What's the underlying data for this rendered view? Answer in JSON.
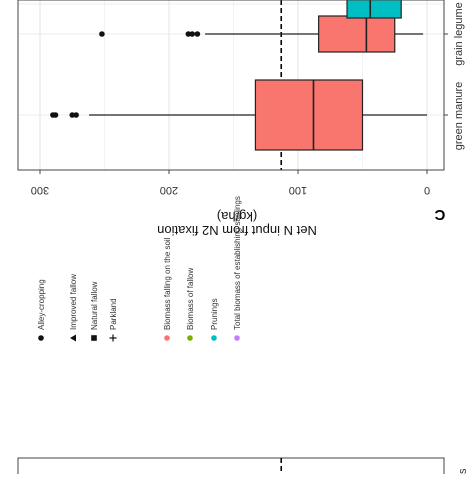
{
  "chart_data": {
    "type": "boxplot",
    "panel_label": "C",
    "ylabel": "Net N input from N2 fixation\n(kg/ha)",
    "xlabel": "",
    "ylim": [
      0,
      320
    ],
    "y_ticks": [
      0,
      100,
      200,
      300
    ],
    "orientation": "rotated 90 degrees clockwise",
    "reference_line": {
      "value": 113,
      "style": "dashed"
    },
    "categories": [
      "green manure",
      "grain legume",
      ""
    ],
    "boxes": [
      {
        "category": "green manure",
        "group": "Biomass falling on the soil",
        "q1": 50,
        "median": 88,
        "q3": 133,
        "whisker_low": 0,
        "whisker_high": 262,
        "outliers": [
          288,
          290,
          272,
          275
        ]
      },
      {
        "category": "grain legume",
        "group": "Biomass falling on the soil",
        "q1": 25,
        "median": 47,
        "q3": 84,
        "whisker_low": 3,
        "whisker_high": 172,
        "outliers": [
          252,
          178,
          182,
          185
        ]
      },
      {
        "category": "",
        "group": "Prunings",
        "q1": 20,
        "median": 44,
        "q3": 62,
        "whisker_low": null,
        "whisker_high": null,
        "outliers": []
      }
    ],
    "grid": true,
    "legend": {
      "placement": "left panel",
      "shape_title": "",
      "shapes": [
        {
          "label": "Alley-cropping",
          "symbol": "circle"
        },
        {
          "label": "Improved fallow",
          "symbol": "triangle"
        },
        {
          "label": "Natural fallow",
          "symbol": "square"
        },
        {
          "label": "Parkland",
          "symbol": "plus"
        }
      ],
      "colors": [
        {
          "label": "Biomass falling on the soil",
          "color": "#f8766d"
        },
        {
          "label": "Biomass of fallow",
          "color": "#7cae00"
        },
        {
          "label": "Prunings",
          "color": "#00bfc4"
        },
        {
          "label": "Total biomass of establishing saplings",
          "color": "#c77cff"
        }
      ]
    },
    "cut_text": "s"
  }
}
